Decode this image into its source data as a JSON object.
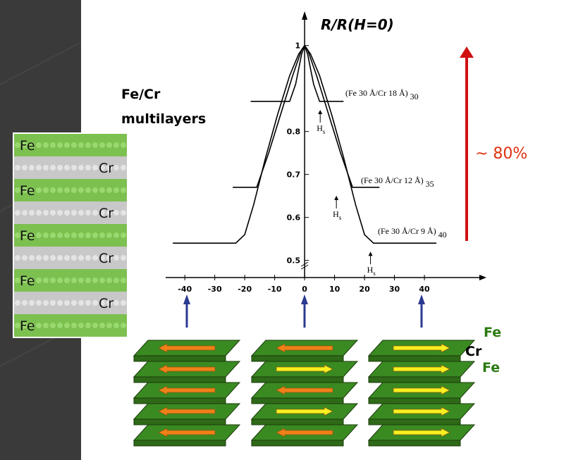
{
  "chart_data": {
    "type": "line",
    "y_label": "R/R(H=0)",
    "xlim": [
      -46.4,
      60.7
    ],
    "ylim": [
      0.46,
      1.07
    ],
    "xticks": [
      -40,
      -30,
      -20,
      -10,
      0,
      10,
      20,
      30,
      40
    ],
    "yticks": [
      0.5,
      0.6,
      0.7,
      0.8,
      1
    ],
    "axis_break": true,
    "series": [
      {
        "name": "(Fe 30 Å/Cr 18 Å)",
        "name_sub": "30",
        "color": "#000000",
        "x": [
          -18,
          -5,
          -3,
          -1,
          0,
          1,
          3,
          5,
          13
        ],
        "values": [
          0.87,
          0.87,
          0.91,
          0.98,
          1,
          0.98,
          0.91,
          0.87,
          0.87
        ],
        "hs_x": 5.2,
        "hs_label": "H",
        "hs_sub": "s"
      },
      {
        "name": "(Fe 30 Å/Cr 12 Å)",
        "name_sub": "35",
        "color": "#000000",
        "x": [
          -24,
          -16,
          -12,
          -8,
          -4,
          -1,
          0,
          1,
          4,
          8,
          12,
          16,
          25
        ],
        "values": [
          0.67,
          0.67,
          0.75,
          0.84,
          0.93,
          0.99,
          1,
          0.99,
          0.93,
          0.84,
          0.75,
          0.67,
          0.67
        ],
        "hs_x": 10.6,
        "hs_label": "H",
        "hs_sub": "s"
      },
      {
        "name": "(Fe 30 Å/Cr 9 Å)",
        "name_sub": "40",
        "color": "#000000",
        "x": [
          -44,
          -23,
          -20,
          -17,
          -13,
          -9,
          -5,
          -2,
          0,
          2,
          5,
          9,
          13,
          17,
          20,
          23,
          44
        ],
        "values": [
          0.54,
          0.54,
          0.56,
          0.63,
          0.74,
          0.84,
          0.93,
          0.98,
          1,
          0.98,
          0.93,
          0.84,
          0.74,
          0.63,
          0.56,
          0.54,
          0.54
        ],
        "hs_x": 22,
        "hs_label": "H",
        "hs_sub": "s"
      }
    ],
    "annotations": {
      "material": "Fe/Cr",
      "structure": "multilayers",
      "change": "~ 80%"
    }
  },
  "diagram": {
    "left_layers": [
      "Fe",
      "Cr",
      "Fe",
      "Cr",
      "Fe",
      "Cr",
      "Fe",
      "Cr",
      "Fe"
    ],
    "right_labels": [
      "Fe",
      "Cr",
      "Fe"
    ]
  }
}
